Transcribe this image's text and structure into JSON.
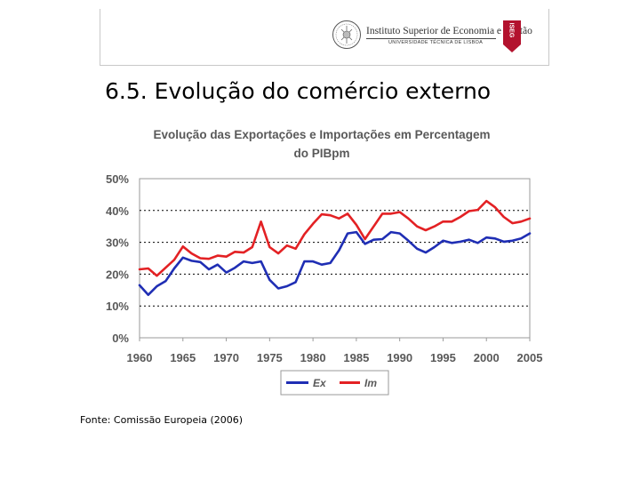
{
  "header": {
    "institute": "Instituto Superior de Economia e Gestão",
    "university": "UNIVERSIDADE TÉCNICA DE LISBOA",
    "shield_text": "ISEG"
  },
  "page": {
    "title": "6.5. Evolução do comércio externo",
    "source": "Fonte: Comissão Europeia (2006)"
  },
  "colors": {
    "ex": "#1f2eb4",
    "im": "#e32124",
    "text": "#595959"
  },
  "chart_data": {
    "type": "line",
    "title_lines": [
      "Evolução das Exportações e Importações em Percentagem",
      "do PIBpm"
    ],
    "xlim": [
      1960,
      2005
    ],
    "ylim": [
      0,
      50
    ],
    "x_ticks": [
      1960,
      1965,
      1970,
      1975,
      1980,
      1985,
      1990,
      1995,
      2000,
      2005
    ],
    "y_ticks": [
      0,
      10,
      20,
      30,
      40,
      50
    ],
    "y_tick_labels": [
      "0%",
      "10%",
      "20%",
      "30%",
      "40%",
      "50%"
    ],
    "x": [
      1960,
      1961,
      1962,
      1963,
      1964,
      1965,
      1966,
      1967,
      1968,
      1969,
      1970,
      1971,
      1972,
      1973,
      1974,
      1975,
      1976,
      1977,
      1978,
      1979,
      1980,
      1981,
      1982,
      1983,
      1984,
      1985,
      1986,
      1987,
      1988,
      1989,
      1990,
      1991,
      1992,
      1993,
      1994,
      1995,
      1996,
      1997,
      1998,
      1999,
      2000,
      2001,
      2002,
      2003,
      2004,
      2005
    ],
    "series": [
      {
        "name": "Ex",
        "color": "#1f2eb4",
        "values": [
          16.5,
          13.5,
          16.2,
          17.8,
          21.8,
          25.2,
          24.2,
          23.8,
          21.5,
          23.0,
          20.5,
          22.0,
          24.0,
          23.5,
          24.0,
          18.2,
          15.5,
          16.2,
          17.5,
          24.0,
          24.0,
          23.0,
          23.5,
          27.5,
          32.8,
          33.2,
          29.5,
          30.8,
          31.0,
          33.2,
          32.8,
          30.5,
          28.0,
          26.8,
          28.5,
          30.5,
          29.8,
          30.2,
          30.8,
          29.8,
          31.5,
          31.2,
          30.2,
          30.5,
          31.2,
          32.8
        ]
      },
      {
        "name": "Im",
        "color": "#e32124",
        "values": [
          21.5,
          21.8,
          19.5,
          22.0,
          24.5,
          28.7,
          26.5,
          25.0,
          24.8,
          25.8,
          25.5,
          27.0,
          26.8,
          28.5,
          36.5,
          28.5,
          26.5,
          29.0,
          28.0,
          32.5,
          35.8,
          38.8,
          38.5,
          37.5,
          39.0,
          35.5,
          31.0,
          35.0,
          39.0,
          39.0,
          39.5,
          37.5,
          35.0,
          33.8,
          35.0,
          36.5,
          36.5,
          38.0,
          39.8,
          40.2,
          43.0,
          41.0,
          38.0,
          36.0,
          36.5,
          37.5
        ]
      }
    ],
    "legend": {
      "position": "bottom-center",
      "entries": [
        "Ex",
        "Im"
      ]
    },
    "grid": true
  }
}
